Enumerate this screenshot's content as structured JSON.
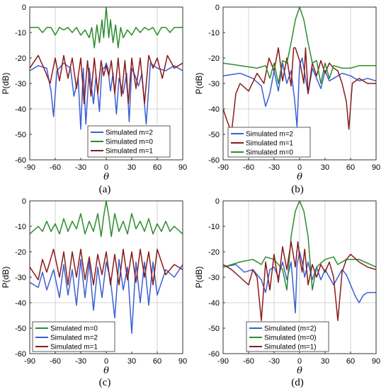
{
  "chart_data": [
    {
      "type": "line",
      "panel_label": "(a)",
      "ylabel": "P(dB)",
      "xlabel": "θ",
      "xlim": [
        -90,
        90
      ],
      "ylim": [
        -60,
        0
      ],
      "xticks": [
        "-90",
        "-60",
        "-30",
        "0",
        "30",
        "60",
        "90"
      ],
      "yticks": [
        "0",
        "-10",
        "-20",
        "-30",
        "-40",
        "-50",
        "-60"
      ],
      "grid": "sparse",
      "legend_position": "bottom-center",
      "series": [
        {
          "name": "Simulated m=2",
          "color": "#3b5fd4",
          "x": [
            -90,
            -80,
            -70,
            -65,
            -62,
            -58,
            -50,
            -42,
            -38,
            -33,
            -30,
            -27,
            -24,
            -20,
            -15,
            -12,
            -8,
            -5,
            -2,
            0,
            2,
            5,
            8,
            12,
            15,
            20,
            24,
            27,
            30,
            34,
            38,
            42,
            47,
            52,
            60,
            70,
            80,
            90
          ],
          "y": [
            -25,
            -23,
            -24,
            -33,
            -43,
            -25,
            -22,
            -24,
            -35,
            -28,
            -48,
            -24,
            -46,
            -24,
            -38,
            -27,
            -41,
            -24,
            -24,
            -22,
            -24,
            -33,
            -26,
            -42,
            -28,
            -34,
            -26,
            -45,
            -24,
            -27,
            -31,
            -26,
            -46,
            -22,
            -24,
            -25,
            -23,
            -25
          ]
        },
        {
          "name": "Simulated m=0",
          "color": "#2e8b2e",
          "x": [
            -90,
            -80,
            -75,
            -70,
            -65,
            -60,
            -55,
            -50,
            -45,
            -40,
            -35,
            -30,
            -25,
            -20,
            -17,
            -14,
            -11,
            -8,
            -5,
            -3,
            0,
            3,
            5,
            8,
            11,
            14,
            17,
            20,
            25,
            30,
            35,
            40,
            45,
            50,
            55,
            60,
            65,
            70,
            75,
            80,
            90
          ],
          "y": [
            -8,
            -8,
            -10,
            -8,
            -8,
            -11,
            -8,
            -9,
            -8,
            -10,
            -8,
            -11,
            -9,
            -12,
            -8,
            -16,
            -7,
            -14,
            -5,
            -12,
            0,
            -12,
            -5,
            -14,
            -7,
            -16,
            -8,
            -12,
            -9,
            -11,
            -8,
            -10,
            -8,
            -9,
            -8,
            -11,
            -8,
            -8,
            -10,
            -8,
            -8
          ]
        },
        {
          "name": "Simulated m=1",
          "color": "#8b1a1a",
          "x": [
            -90,
            -80,
            -72,
            -66,
            -60,
            -55,
            -50,
            -45,
            -40,
            -35,
            -30,
            -26,
            -22,
            -18,
            -14,
            -10,
            -6,
            -3,
            0,
            3,
            6,
            10,
            14,
            18,
            22,
            26,
            30,
            35,
            40,
            45,
            50,
            55,
            60,
            66,
            72,
            80,
            90
          ],
          "y": [
            -24,
            -19,
            -25,
            -30,
            -20,
            -29,
            -19,
            -28,
            -20,
            -32,
            -20,
            -38,
            -21,
            -35,
            -20,
            -34,
            -21,
            -27,
            -23,
            -27,
            -21,
            -34,
            -20,
            -35,
            -21,
            -38,
            -20,
            -32,
            -20,
            -38,
            -19,
            -24,
            -20,
            -28,
            -19,
            -24,
            -22
          ]
        }
      ]
    },
    {
      "type": "line",
      "panel_label": "(b)",
      "ylabel": "P(dB)",
      "xlabel": "θ",
      "xlim": [
        -90,
        90
      ],
      "ylim": [
        -60,
        0
      ],
      "xticks": [
        "-90",
        "-60",
        "-30",
        "0",
        "30",
        "60",
        "90"
      ],
      "yticks": [
        "0",
        "-10",
        "-20",
        "-30",
        "-40",
        "-50",
        "-60"
      ],
      "grid": "sparse",
      "legend_position": "bottom-center",
      "series": [
        {
          "name": "Simulated m=2",
          "color": "#3b5fd4",
          "x": [
            -90,
            -70,
            -55,
            -45,
            -40,
            -35,
            -30,
            -25,
            -20,
            -15,
            -10,
            -6,
            -3,
            0,
            3,
            6,
            10,
            15,
            20,
            25,
            30,
            35,
            40,
            50,
            60,
            70,
            80,
            90
          ],
          "y": [
            -27,
            -26,
            -28,
            -31,
            -39,
            -34,
            -25,
            -33,
            -22,
            -30,
            -25,
            -36,
            -47,
            -23,
            -20,
            -26,
            -34,
            -24,
            -28,
            -32,
            -25,
            -29,
            -28,
            -26,
            -27,
            -29,
            -28,
            -29
          ]
        },
        {
          "name": "Simulated m=1",
          "color": "#8b1a1a",
          "x": [
            -90,
            -85,
            -80,
            -75,
            -70,
            -60,
            -50,
            -42,
            -36,
            -30,
            -25,
            -20,
            -15,
            -10,
            -7,
            -5,
            0,
            5,
            7,
            10,
            15,
            20,
            25,
            30,
            35,
            40,
            45,
            50,
            55,
            58,
            62,
            70,
            80,
            90
          ],
          "y": [
            -40,
            -45,
            -49,
            -34,
            -30,
            -33,
            -26,
            -30,
            -20,
            -25,
            -16,
            -29,
            -20,
            -31,
            -16,
            -16,
            -21,
            -30,
            -16,
            -34,
            -22,
            -27,
            -21,
            -26,
            -22,
            -24,
            -25,
            -30,
            -37,
            -48,
            -30,
            -28,
            -30,
            -30
          ]
        },
        {
          "name": "Simulated m=0",
          "color": "#2e8b2e",
          "x": [
            -90,
            -70,
            -50,
            -40,
            -35,
            -30,
            -25,
            -20,
            -15,
            -10,
            -5,
            0,
            5,
            10,
            15,
            20,
            25,
            30,
            35,
            40,
            50,
            60,
            70,
            80,
            90
          ],
          "y": [
            -22,
            -23,
            -24,
            -23,
            -28,
            -22,
            -30,
            -21,
            -22,
            -14,
            -5,
            0,
            -5,
            -14,
            -22,
            -21,
            -30,
            -22,
            -28,
            -23,
            -24,
            -24,
            -23,
            -23,
            -23
          ]
        }
      ]
    },
    {
      "type": "line",
      "panel_label": "(c)",
      "ylabel": "P(dB)",
      "xlabel": "θ",
      "xlim": [
        -90,
        90
      ],
      "ylim": [
        -60,
        0
      ],
      "xticks": [
        "-90",
        "-60",
        "-30",
        "0",
        "30",
        "60",
        "90"
      ],
      "yticks": [
        "0",
        "-10",
        "-20",
        "-30",
        "-40",
        "-50",
        "-60"
      ],
      "grid": "sparse",
      "legend_position": "bottom-left",
      "series": [
        {
          "name": "Simulated m=0",
          "color": "#2e8b2e",
          "x": [
            -90,
            -80,
            -75,
            -70,
            -65,
            -60,
            -55,
            -50,
            -45,
            -40,
            -35,
            -30,
            -25,
            -20,
            -15,
            -10,
            -6,
            -3,
            0,
            3,
            6,
            10,
            15,
            20,
            25,
            30,
            35,
            40,
            45,
            50,
            55,
            60,
            65,
            70,
            75,
            80,
            90
          ],
          "y": [
            -13,
            -10,
            -12,
            -8,
            -12,
            -9,
            -13,
            -7,
            -12,
            -8,
            -11,
            -5,
            -13,
            -8,
            -12,
            -5,
            -14,
            -6,
            0,
            -6,
            -14,
            -5,
            -12,
            -8,
            -13,
            -5,
            -11,
            -8,
            -12,
            -7,
            -13,
            -9,
            -12,
            -8,
            -12,
            -10,
            -13
          ]
        },
        {
          "name": "Simulated m=2",
          "color": "#3b5fd4",
          "x": [
            -90,
            -80,
            -75,
            -70,
            -62,
            -55,
            -50,
            -45,
            -40,
            -35,
            -30,
            -25,
            -20,
            -15,
            -10,
            -5,
            0,
            5,
            10,
            15,
            20,
            25,
            30,
            35,
            40,
            45,
            50,
            55,
            60,
            70,
            80,
            90
          ],
          "y": [
            -32,
            -34,
            -28,
            -35,
            -27,
            -38,
            -25,
            -37,
            -27,
            -41,
            -23,
            -38,
            -24,
            -43,
            -26,
            -38,
            -24,
            -31,
            -46,
            -23,
            -35,
            -26,
            -52,
            -24,
            -40,
            -24,
            -41,
            -24,
            -37,
            -27,
            -30,
            -25
          ]
        },
        {
          "name": "Simulated m=1",
          "color": "#8b1a1a",
          "x": [
            -90,
            -80,
            -75,
            -70,
            -62,
            -55,
            -50,
            -45,
            -40,
            -35,
            -30,
            -25,
            -20,
            -15,
            -10,
            -5,
            0,
            5,
            10,
            15,
            20,
            25,
            30,
            35,
            40,
            45,
            50,
            55,
            60,
            70,
            80,
            90
          ],
          "y": [
            -26,
            -31,
            -23,
            -28,
            -19,
            -30,
            -20,
            -33,
            -20,
            -30,
            -19,
            -31,
            -22,
            -33,
            -21,
            -29,
            -20,
            -33,
            -21,
            -33,
            -19,
            -31,
            -20,
            -32,
            -19,
            -30,
            -20,
            -33,
            -19,
            -29,
            -25,
            -27
          ]
        }
      ]
    },
    {
      "type": "line",
      "panel_label": "(d)",
      "ylabel": "P(dB)",
      "xlabel": "θ",
      "xlim": [
        -90,
        90
      ],
      "ylim": [
        -60,
        0
      ],
      "xticks": [
        "-90",
        "-60",
        "-30",
        "0",
        "30",
        "60",
        "90"
      ],
      "yticks": [
        "0",
        "-10",
        "-20",
        "-30",
        "-40",
        "-50",
        "-60"
      ],
      "grid": "sparse",
      "legend_position": "bottom-center",
      "series": [
        {
          "name": "Simulated (m=2)",
          "color": "#3b5fd4",
          "x": [
            -90,
            -75,
            -65,
            -55,
            -45,
            -40,
            -35,
            -30,
            -25,
            -20,
            -15,
            -10,
            -5,
            -3,
            0,
            3,
            6,
            10,
            15,
            20,
            25,
            30,
            35,
            40,
            45,
            50,
            55,
            60,
            65,
            70,
            75,
            80,
            90
          ],
          "y": [
            -26,
            -25,
            -28,
            -27,
            -31,
            -36,
            -27,
            -26,
            -30,
            -24,
            -31,
            -24,
            -44,
            -25,
            -20,
            -24,
            -30,
            -24,
            -31,
            -26,
            -31,
            -27,
            -30,
            -33,
            -30,
            -27,
            -29,
            -33,
            -37,
            -40,
            -37,
            -36,
            -36
          ]
        },
        {
          "name": "Simulated (m=0)",
          "color": "#2e8b2e",
          "x": [
            -90,
            -70,
            -55,
            -45,
            -40,
            -30,
            -20,
            -15,
            -10,
            -5,
            0,
            5,
            10,
            15,
            20,
            30,
            40,
            45,
            55,
            70,
            90
          ],
          "y": [
            -26,
            -24,
            -23,
            -25,
            -22,
            -23,
            -27,
            -35,
            -14,
            -4,
            0,
            -4,
            -14,
            -35,
            -26,
            -23,
            -22,
            -25,
            -23,
            -23,
            -26
          ]
        },
        {
          "name": "Simulated (m=1)",
          "color": "#8b1a1a",
          "x": [
            -90,
            -80,
            -70,
            -60,
            -55,
            -50,
            -45,
            -40,
            -35,
            -30,
            -25,
            -20,
            -15,
            -10,
            -5,
            -2,
            0,
            3,
            6,
            10,
            15,
            20,
            25,
            30,
            35,
            40,
            45,
            50,
            55,
            60,
            70,
            80,
            90
          ],
          "y": [
            -25,
            -27,
            -30,
            -33,
            -27,
            -30,
            -47,
            -24,
            -35,
            -21,
            -32,
            -18,
            -27,
            -16,
            -26,
            -16,
            -22,
            -28,
            -19,
            -33,
            -25,
            -30,
            -25,
            -28,
            -24,
            -30,
            -47,
            -28,
            -23,
            -21,
            -24,
            -26,
            -27
          ]
        }
      ]
    }
  ]
}
